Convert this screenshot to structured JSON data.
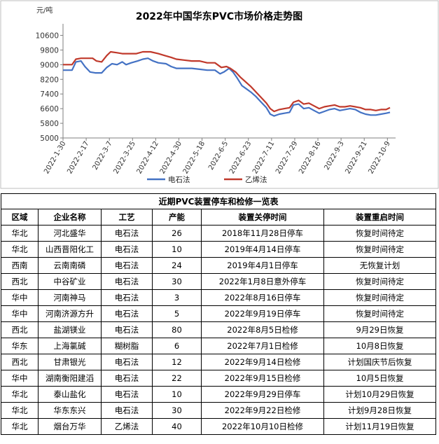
{
  "chart_data": {
    "type": "line",
    "title": "2022年中国华东PVC市场价格走势图",
    "unit_label": "元/吨",
    "ylim": [
      5000,
      11000
    ],
    "yticks": [
      5000,
      5800,
      6600,
      7400,
      8200,
      9000,
      9800,
      10600
    ],
    "grid": false,
    "legend_position": "bottom",
    "x_tick_labels": [
      "2022-1-30",
      "2022-2-17",
      "2022-3-7",
      "2022-3-25",
      "2022-4-12",
      "2022-4-30",
      "2022-5-18",
      "2022-6-5",
      "2022-6-23",
      "2022-7-11",
      "2022-7-29",
      "2022-8-16",
      "2022-9-3",
      "2022-9-21",
      "2022-10-9"
    ],
    "series": [
      {
        "name": "电石法",
        "color": "#4472C4",
        "points": [
          [
            "2022-1-30",
            8700
          ],
          [
            "2022-2-6",
            8700
          ],
          [
            "2022-2-9",
            9150
          ],
          [
            "2022-2-13",
            9200
          ],
          [
            "2022-2-16",
            8900
          ],
          [
            "2022-2-20",
            8600
          ],
          [
            "2022-2-24",
            8550
          ],
          [
            "2022-3-1",
            8550
          ],
          [
            "2022-3-5",
            8850
          ],
          [
            "2022-3-9",
            9050
          ],
          [
            "2022-3-13",
            9000
          ],
          [
            "2022-3-17",
            9150
          ],
          [
            "2022-3-20",
            9000
          ],
          [
            "2022-3-24",
            9100
          ],
          [
            "2022-3-29",
            9200
          ],
          [
            "2022-4-2",
            9300
          ],
          [
            "2022-4-6",
            9350
          ],
          [
            "2022-4-10",
            9200
          ],
          [
            "2022-4-14",
            9100
          ],
          [
            "2022-4-20",
            9050
          ],
          [
            "2022-4-24",
            8900
          ],
          [
            "2022-4-28",
            8800
          ],
          [
            "2022-5-4",
            8800
          ],
          [
            "2022-5-10",
            8800
          ],
          [
            "2022-5-16",
            8750
          ],
          [
            "2022-5-22",
            8700
          ],
          [
            "2022-5-28",
            8700
          ],
          [
            "2022-6-1",
            8500
          ],
          [
            "2022-6-4",
            8600
          ],
          [
            "2022-6-8",
            8800
          ],
          [
            "2022-6-11",
            8600
          ],
          [
            "2022-6-14",
            8300
          ],
          [
            "2022-6-18",
            7850
          ],
          [
            "2022-6-21",
            7700
          ],
          [
            "2022-6-25",
            7500
          ],
          [
            "2022-6-29",
            7250
          ],
          [
            "2022-7-3",
            6950
          ],
          [
            "2022-7-7",
            6650
          ],
          [
            "2022-7-10",
            6300
          ],
          [
            "2022-7-13",
            6200
          ],
          [
            "2022-7-17",
            6300
          ],
          [
            "2022-7-21",
            6350
          ],
          [
            "2022-7-25",
            6400
          ],
          [
            "2022-7-28",
            6800
          ],
          [
            "2022-8-1",
            6850
          ],
          [
            "2022-8-5",
            6600
          ],
          [
            "2022-8-9",
            6650
          ],
          [
            "2022-8-13",
            6500
          ],
          [
            "2022-8-17",
            6350
          ],
          [
            "2022-8-21",
            6450
          ],
          [
            "2022-8-25",
            6550
          ],
          [
            "2022-8-29",
            6600
          ],
          [
            "2022-9-2",
            6500
          ],
          [
            "2022-9-6",
            6550
          ],
          [
            "2022-9-10",
            6600
          ],
          [
            "2022-9-14",
            6550
          ],
          [
            "2022-9-18",
            6400
          ],
          [
            "2022-9-22",
            6300
          ],
          [
            "2022-9-26",
            6250
          ],
          [
            "2022-9-30",
            6250
          ],
          [
            "2022-10-4",
            6300
          ],
          [
            "2022-10-8",
            6350
          ],
          [
            "2022-10-11",
            6400
          ]
        ]
      },
      {
        "name": "乙烯法",
        "color": "#C0392B",
        "points": [
          [
            "2022-1-30",
            9000
          ],
          [
            "2022-2-6",
            9000
          ],
          [
            "2022-2-9",
            9300
          ],
          [
            "2022-2-13",
            9350
          ],
          [
            "2022-2-18",
            9350
          ],
          [
            "2022-2-22",
            9350
          ],
          [
            "2022-2-25",
            9200
          ],
          [
            "2022-3-1",
            9150
          ],
          [
            "2022-3-5",
            9500
          ],
          [
            "2022-3-8",
            9700
          ],
          [
            "2022-3-13",
            9650
          ],
          [
            "2022-3-17",
            9600
          ],
          [
            "2022-3-22",
            9600
          ],
          [
            "2022-3-28",
            9600
          ],
          [
            "2022-4-2",
            9700
          ],
          [
            "2022-4-8",
            9700
          ],
          [
            "2022-4-14",
            9600
          ],
          [
            "2022-4-19",
            9500
          ],
          [
            "2022-4-24",
            9400
          ],
          [
            "2022-4-28",
            9300
          ],
          [
            "2022-5-4",
            9250
          ],
          [
            "2022-5-10",
            9200
          ],
          [
            "2022-5-16",
            9200
          ],
          [
            "2022-5-22",
            9100
          ],
          [
            "2022-5-28",
            9100
          ],
          [
            "2022-6-2",
            8850
          ],
          [
            "2022-6-6",
            8900
          ],
          [
            "2022-6-9",
            8800
          ],
          [
            "2022-6-13",
            8600
          ],
          [
            "2022-6-17",
            8300
          ],
          [
            "2022-6-21",
            8050
          ],
          [
            "2022-6-25",
            7800
          ],
          [
            "2022-6-29",
            7500
          ],
          [
            "2022-7-3",
            7200
          ],
          [
            "2022-7-7",
            6900
          ],
          [
            "2022-7-10",
            6600
          ],
          [
            "2022-7-13",
            6450
          ],
          [
            "2022-7-17",
            6550
          ],
          [
            "2022-7-21",
            6600
          ],
          [
            "2022-7-25",
            6650
          ],
          [
            "2022-7-28",
            6950
          ],
          [
            "2022-8-1",
            7050
          ],
          [
            "2022-8-5",
            6850
          ],
          [
            "2022-8-9",
            6900
          ],
          [
            "2022-8-13",
            6750
          ],
          [
            "2022-8-17",
            6600
          ],
          [
            "2022-8-21",
            6700
          ],
          [
            "2022-8-25",
            6750
          ],
          [
            "2022-8-29",
            6800
          ],
          [
            "2022-9-2",
            6700
          ],
          [
            "2022-9-6",
            6700
          ],
          [
            "2022-9-10",
            6750
          ],
          [
            "2022-9-14",
            6700
          ],
          [
            "2022-9-18",
            6650
          ],
          [
            "2022-9-22",
            6550
          ],
          [
            "2022-9-26",
            6550
          ],
          [
            "2022-9-30",
            6500
          ],
          [
            "2022-10-4",
            6550
          ],
          [
            "2022-10-8",
            6550
          ],
          [
            "2022-10-11",
            6650
          ]
        ]
      }
    ]
  },
  "table": {
    "title": "近期PVC装置停车和检修一览表",
    "headers": [
      "区域",
      "企业名称",
      "工艺",
      "产能",
      "装置关停时间",
      "装置重启时间"
    ],
    "rows": [
      [
        "华北",
        "河北盛华",
        "电石法",
        "26",
        "2018年11月28日停车",
        "恢复时间待定"
      ],
      [
        "华北",
        "山西晋阳化工",
        "电石法",
        "10",
        "2019年4月14日停车",
        "恢复时间待定"
      ],
      [
        "西南",
        "云南南磷",
        "电石法",
        "24",
        "2019年4月1日停车",
        "无恢复计划"
      ],
      [
        "西北",
        "中谷矿业",
        "电石法",
        "30",
        "2022年1月8日意外停车",
        "恢复时间待定"
      ],
      [
        "华中",
        "河南神马",
        "电石法",
        "3",
        "2022年8月16日停车",
        "恢复时间待定"
      ],
      [
        "华中",
        "河南济源方升",
        "电石法",
        "5",
        "2022年9月19日停车",
        "恢复时间待定"
      ],
      [
        "西北",
        "盐湖镁业",
        "电石法",
        "80",
        "2022年8月5日检修",
        "9月29日恢复"
      ],
      [
        "华东",
        "上海氯碱",
        "糊树脂",
        "6",
        "2022年7月1日检修",
        "10月8日恢复"
      ],
      [
        "西北",
        "甘肃银光",
        "电石法",
        "12",
        "2022年9月14日检修",
        "计划国庆节后恢复"
      ],
      [
        "华中",
        "湖南衡阳建滔",
        "电石法",
        "22",
        "2022年9月15日检修",
        "10月5日恢复"
      ],
      [
        "华北",
        "泰山盐化",
        "电石法",
        "10",
        "2022年9月29日停车",
        "计划10月29日恢复"
      ],
      [
        "华北",
        "华东东兴",
        "电石法",
        "30",
        "2022年9月22日检修",
        "计划9月28日恢复"
      ],
      [
        "华北",
        "烟台万华",
        "乙烯法",
        "40",
        "2022年10月10日检修",
        "计划11月19日恢复"
      ]
    ]
  }
}
